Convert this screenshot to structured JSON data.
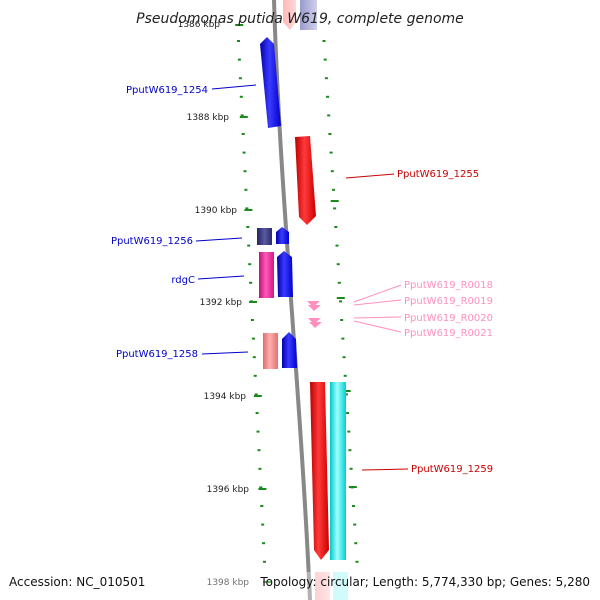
{
  "title": "Pseudomonas putida W619, complete genome",
  "accession": "Accession: NC_010501",
  "topology": "Topology: circular; Length: 5,774,330 bp; Genes: 5,280",
  "colors": {
    "forward": "#0000ee",
    "reverse": "#dd0000",
    "rna": "#ff8fbf",
    "backbone": "#888888",
    "tick": "#1a8a1a"
  },
  "scale": {
    "labels": [
      "1386 kbp",
      "1388 kbp",
      "1390 kbp",
      "1392 kbp",
      "1394 kbp",
      "1396 kbp",
      "1398 kbp"
    ]
  },
  "labels": [
    {
      "text": "PputW619_1254",
      "color": "#0000cc"
    },
    {
      "text": "PputW619_1255",
      "color": "#cc0000"
    },
    {
      "text": "PputW619_1256",
      "color": "#0000cc"
    },
    {
      "text": "rdgC",
      "color": "#0000cc"
    },
    {
      "text": "PputW619_R0018",
      "color": "#ff8fbf"
    },
    {
      "text": "PputW619_R0019",
      "color": "#ff8fbf"
    },
    {
      "text": "PputW619_R0020",
      "color": "#ff8fbf"
    },
    {
      "text": "PputW619_R0021",
      "color": "#ff8fbf"
    },
    {
      "text": "PputW619_1258",
      "color": "#0000cc"
    },
    {
      "text": "PputW619_1259",
      "color": "#cc0000"
    }
  ]
}
